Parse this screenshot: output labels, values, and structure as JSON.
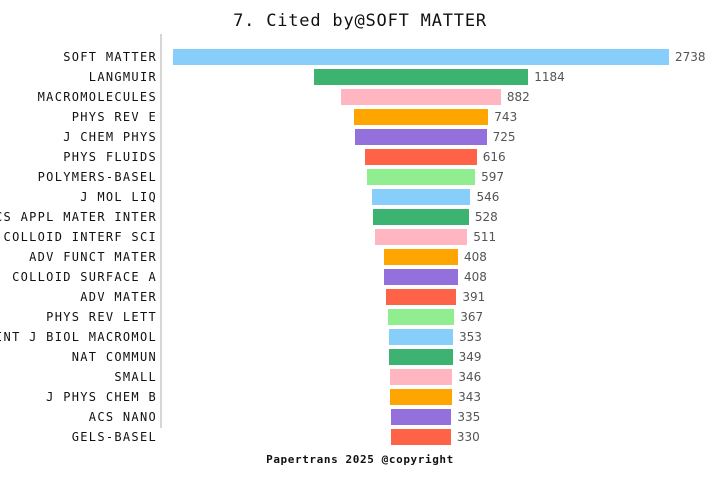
{
  "header": {
    "title": "7. Cited by@SOFT MATTER"
  },
  "footer": {
    "text": "Papertrans 2025 @copyright"
  },
  "chart_data": {
    "type": "bar",
    "orientation": "horizontal",
    "style": "centered-funnel",
    "title": "7. Cited by@SOFT MATTER",
    "xlabel": "",
    "ylabel": "",
    "grid": false,
    "legend": false,
    "xlim": [
      0,
      2738
    ],
    "categories": [
      "SOFT MATTER",
      "LANGMUIR",
      "MACROMOLECULES",
      "PHYS REV E",
      "J CHEM PHYS",
      "PHYS FLUIDS",
      "POLYMERS-BASEL",
      "J MOL LIQ",
      "ACS APPL MATER INTER",
      "J COLLOID INTERF SCI",
      "ADV FUNCT MATER",
      "COLLOID SURFACE A",
      "ADV MATER",
      "PHYS REV LETT",
      "INT J BIOL MACROMOL",
      "NAT COMMUN",
      "SMALL",
      "J PHYS CHEM B",
      "ACS NANO",
      "GELS-BASEL"
    ],
    "values": [
      2738,
      1184,
      882,
      743,
      725,
      616,
      597,
      546,
      528,
      511,
      408,
      408,
      391,
      367,
      353,
      349,
      346,
      343,
      335,
      330
    ],
    "color_cycle": [
      "#87CEFA",
      "#3CB371",
      "#FFB6C1",
      "#FFA500",
      "#9370DB",
      "#FF6347",
      "#90EE90"
    ],
    "axis_line_color": "#d6d6d6",
    "category_label_color": "#111111",
    "value_label_color": "#545454",
    "background_color": "#ffffff"
  }
}
